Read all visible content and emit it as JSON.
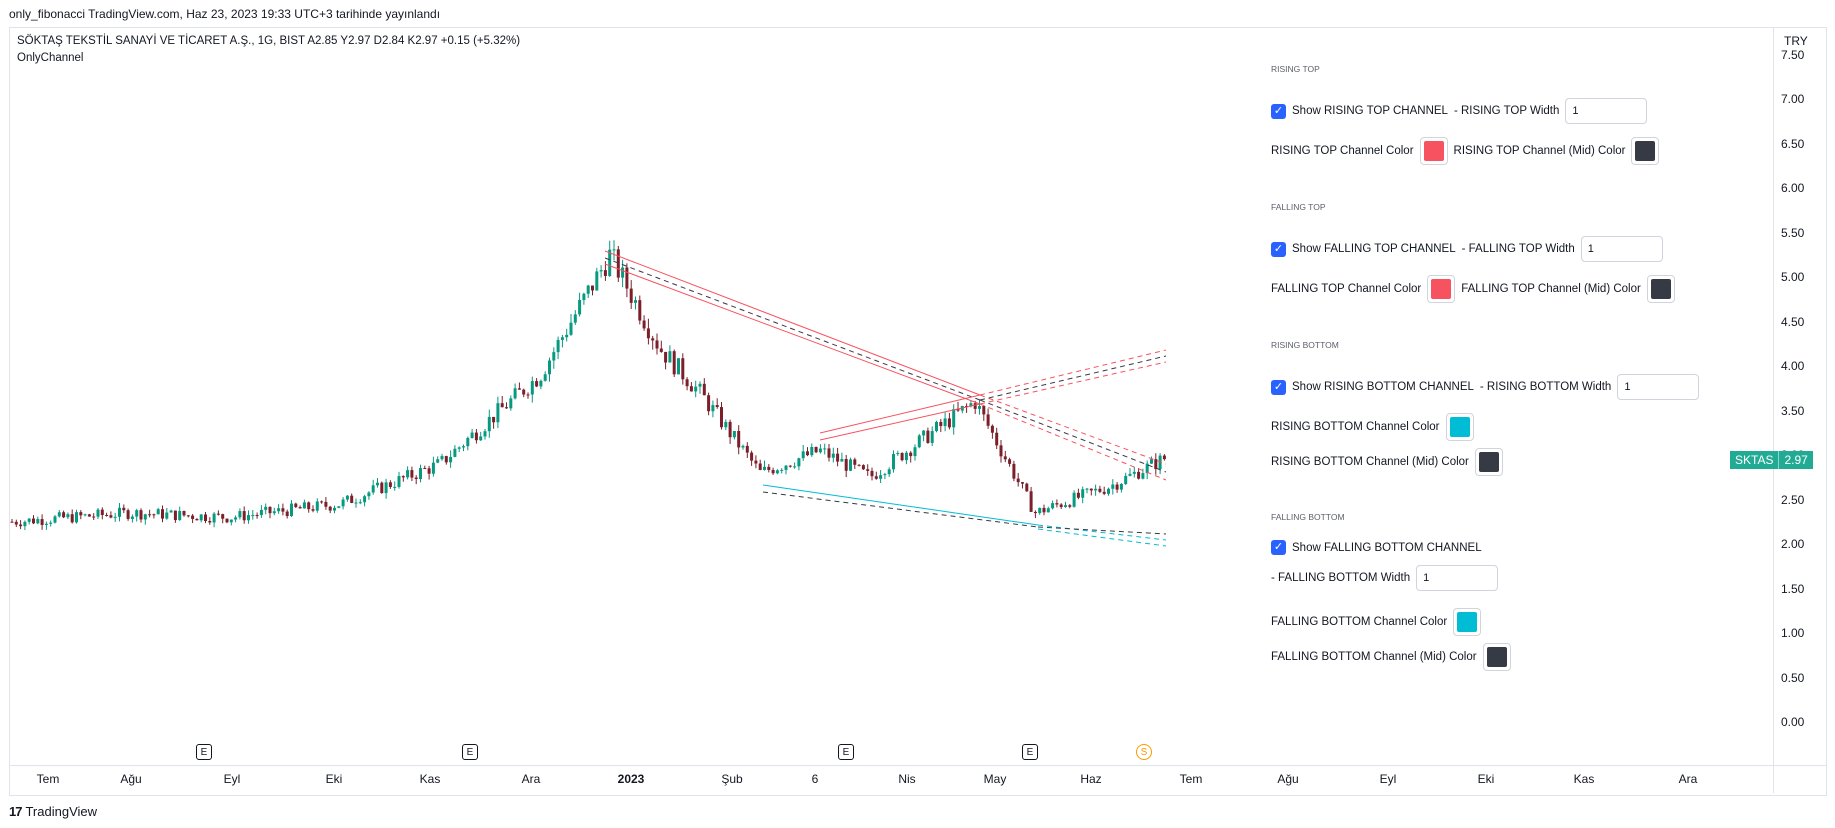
{
  "header": {
    "publish_line": "only_fibonacci TradingView.com, Haz 23, 2023 19:33 UTC+3 tarihinde yayınlandı"
  },
  "symbol_line": "SÖKTAŞ TEKSTİL SANAYİ VE TİCARET A.Ş., 1G, BIST  A2.85  Y2.97  D2.84  K2.97  +0.15 (+5.32%)",
  "indicator_name": "OnlyChannel",
  "price_axis": {
    "currency": "TRY",
    "ticks": [
      "7.50",
      "7.00",
      "6.50",
      "6.00",
      "5.50",
      "5.00",
      "4.50",
      "4.00",
      "3.50",
      "3.00",
      "2.50",
      "2.00",
      "1.50",
      "1.00",
      "0.50",
      "0.00"
    ]
  },
  "time_axis": {
    "labels": [
      "Tem",
      "Ağu",
      "Eyl",
      "Eki",
      "Kas",
      "Ara",
      "2023",
      "Şub",
      "6",
      "Nis",
      "May",
      "Haz",
      "Tem",
      "Ağu",
      "Eyl",
      "Eki",
      "Kas",
      "Ara"
    ]
  },
  "events": [
    {
      "icon": "earnings-icon",
      "label": "E"
    },
    {
      "icon": "earnings-icon",
      "label": "E"
    },
    {
      "icon": "earnings-icon",
      "label": "E"
    },
    {
      "icon": "earnings-icon",
      "label": "E"
    },
    {
      "icon": "dividend-icon",
      "label": "S"
    }
  ],
  "last_price": {
    "ticker": "SKTAS",
    "value": "2.97"
  },
  "settings": {
    "rising_top": {
      "section": "RISING TOP",
      "show_label": "Show RISING TOP CHANNEL",
      "width_label": "- RISING TOP Width",
      "width_value": "1",
      "channel_color_label": "RISING TOP Channel Color",
      "mid_color_label": "RISING TOP Channel (Mid) Color",
      "channel_color": "#f7525f",
      "mid_color": "#363a45"
    },
    "falling_top": {
      "section": "FALLING TOP",
      "show_label": "Show FALLING TOP CHANNEL",
      "width_label": "- FALLING TOP Width",
      "width_value": "1",
      "channel_color_label": "FALLING TOP Channel Color",
      "mid_color_label": "FALLING TOP Channel (Mid) Color",
      "channel_color": "#f7525f",
      "mid_color": "#363a45"
    },
    "rising_bottom": {
      "section": "RISING BOTTOM",
      "show_label": "Show RISING BOTTOM CHANNEL",
      "width_label": "- RISING BOTTOM Width",
      "width_value": "1",
      "channel_color_label": "RISING BOTTOM Channel Color",
      "mid_color_label": "RISING BOTTOM Channel (Mid) Color",
      "channel_color": "#00bcd4",
      "mid_color": "#363a45"
    },
    "falling_bottom": {
      "section": "FALLING BOTTOM",
      "show_label": "Show FALLING BOTTOM CHANNEL",
      "width_label": "- FALLING BOTTOM Width",
      "width_value": "1",
      "channel_color_label": "FALLING BOTTOM Channel Color",
      "mid_color_label": "FALLING BOTTOM Channel (Mid) Color",
      "channel_color": "#00bcd4",
      "mid_color": "#363a45"
    }
  },
  "footer": {
    "brand": "TradingView",
    "logo_text": "17"
  },
  "colors": {
    "up": "#26a69a",
    "down": "#ef5350",
    "candle_up": "#089981",
    "candle_down": "#7b1f2a"
  },
  "chart_data": {
    "type": "candlestick",
    "y_unit": "TRY",
    "ylim": [
      0,
      7.5
    ],
    "close_path": [
      {
        "date": "2022-07",
        "price": 2.25
      },
      {
        "date": "2022-08",
        "price": 2.35
      },
      {
        "date": "2022-09",
        "price": 2.3
      },
      {
        "date": "2022-10",
        "price": 2.45
      },
      {
        "date": "2022-11",
        "price": 2.9
      },
      {
        "date": "2022-12",
        "price": 3.9
      },
      {
        "date": "2022-12-26",
        "price": 5.25
      },
      {
        "date": "2023-01-15",
        "price": 4.2
      },
      {
        "date": "2023-02-01",
        "price": 3.7
      },
      {
        "date": "2023-02-20",
        "price": 2.8
      },
      {
        "date": "2023-03-10",
        "price": 3.05
      },
      {
        "date": "2023-03-25",
        "price": 2.75
      },
      {
        "date": "2023-04-20",
        "price": 3.6
      },
      {
        "date": "2023-05-15",
        "price": 2.35
      },
      {
        "date": "2023-06-10",
        "price": 2.65
      },
      {
        "date": "2023-06-23",
        "price": 2.97
      }
    ],
    "channels": {
      "falling_top": {
        "from": {
          "date": "2022-12-26",
          "price": 5.35
        },
        "to": {
          "date": "2023-04-20",
          "price": 3.7
        }
      },
      "rising_top": {
        "from": {
          "date": "2023-03-01",
          "price": 3.2
        },
        "to": {
          "date": "2023-04-20",
          "price": 3.7
        }
      },
      "falling_bottom": {
        "from": {
          "date": "2023-02-15",
          "price": 2.6
        },
        "to": {
          "date": "2023-05-15",
          "price": 2.25
        }
      }
    }
  }
}
